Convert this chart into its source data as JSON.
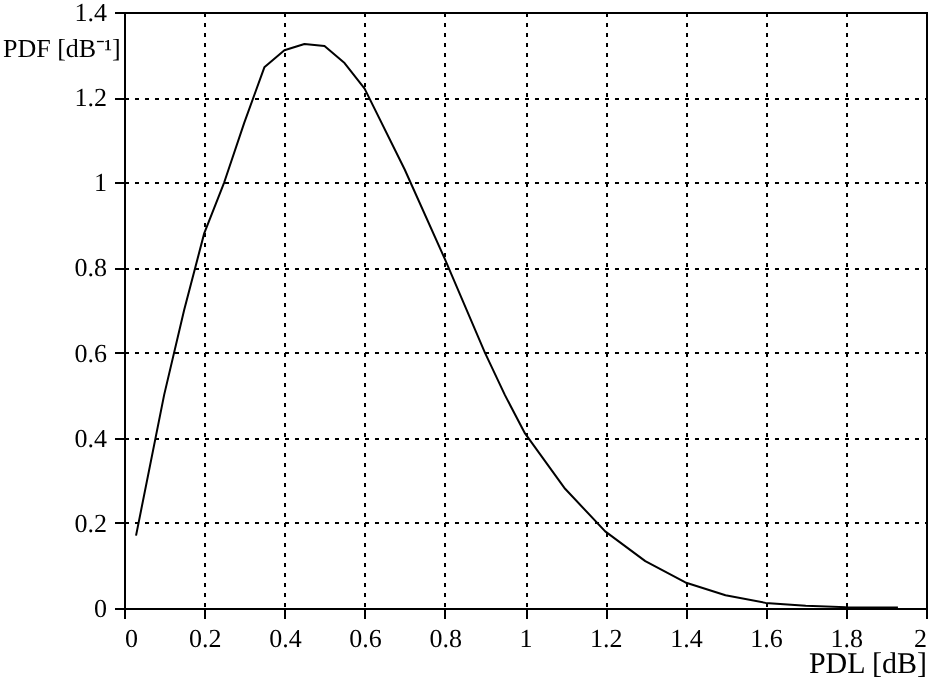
{
  "chart_data": {
    "type": "line",
    "xlabel": "PDL [dB]",
    "ylabel": "PDF [dB⁻¹]",
    "x": [
      0.03,
      0.1,
      0.15,
      0.2,
      0.25,
      0.3,
      0.35,
      0.4,
      0.45,
      0.5,
      0.55,
      0.6,
      0.7,
      0.8,
      0.9,
      0.95,
      1.0,
      1.1,
      1.2,
      1.3,
      1.4,
      1.5,
      1.6,
      1.7,
      1.8,
      1.93
    ],
    "series": [
      {
        "color": "#000000",
        "values": [
          0.17,
          0.5,
          0.7,
          0.88,
          1.0,
          1.14,
          1.27,
          1.31,
          1.325,
          1.32,
          1.28,
          1.22,
          1.03,
          0.82,
          0.6,
          0.5,
          0.41,
          0.28,
          0.18,
          0.11,
          0.06,
          0.03,
          0.012,
          0.005,
          0.002,
          0.001
        ]
      }
    ],
    "xlim": [
      0,
      2
    ],
    "xticks": [
      0,
      0.2,
      0.4,
      0.6,
      0.8,
      1,
      1.2,
      1.4,
      1.6,
      1.8,
      2
    ],
    "ylim": [
      0,
      1.4
    ],
    "yticks": [
      0,
      0.2,
      0.4,
      0.6,
      0.8,
      1,
      1.2,
      1.4
    ],
    "grid": true,
    "line_style": "solid"
  }
}
